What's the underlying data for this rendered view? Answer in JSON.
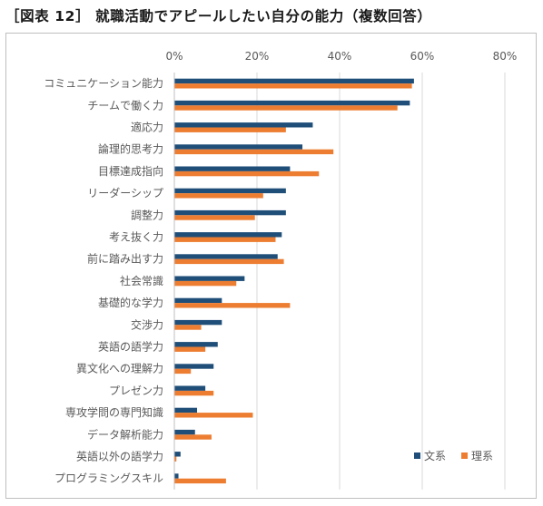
{
  "chart_data": {
    "type": "bar",
    "orientation": "horizontal",
    "title": "［図表 12］ 就職活動でアピールしたい自分の能力（複数回答）",
    "xlabel": "",
    "ylabel": "",
    "xlim": [
      0,
      80
    ],
    "ticks": [
      "0%",
      "20%",
      "40%",
      "60%",
      "80%"
    ],
    "tick_values": [
      0,
      20,
      40,
      60,
      80
    ],
    "grid": true,
    "legend_position": "bottom-right",
    "categories": [
      "コミュニケーション能力",
      "チームで働く力",
      "適応力",
      "論理的思考力",
      "目標達成指向",
      "リーダーシップ",
      "調整力",
      "考え抜く力",
      "前に踏み出す力",
      "社会常識",
      "基礎的な学力",
      "交渉力",
      "英語の語学力",
      "異文化への理解力",
      "プレゼン力",
      "専攻学問の専門知識",
      "データ解析能力",
      "英語以外の語学力",
      "プログラミングスキル"
    ],
    "series": [
      {
        "name": "文系",
        "color": "#1f4e79",
        "values": [
          58,
          57,
          33.5,
          31,
          28,
          27,
          27,
          26,
          25,
          17,
          11.5,
          11.5,
          10.5,
          9.5,
          7.5,
          5.5,
          5,
          1.5,
          1
        ]
      },
      {
        "name": "理系",
        "color": "#ed7d31",
        "values": [
          57.5,
          54,
          27,
          38.5,
          35,
          21.5,
          19.5,
          24.5,
          26.5,
          15,
          28,
          6.5,
          7.5,
          4,
          9.5,
          19,
          9,
          0.5,
          12.5
        ]
      }
    ]
  }
}
